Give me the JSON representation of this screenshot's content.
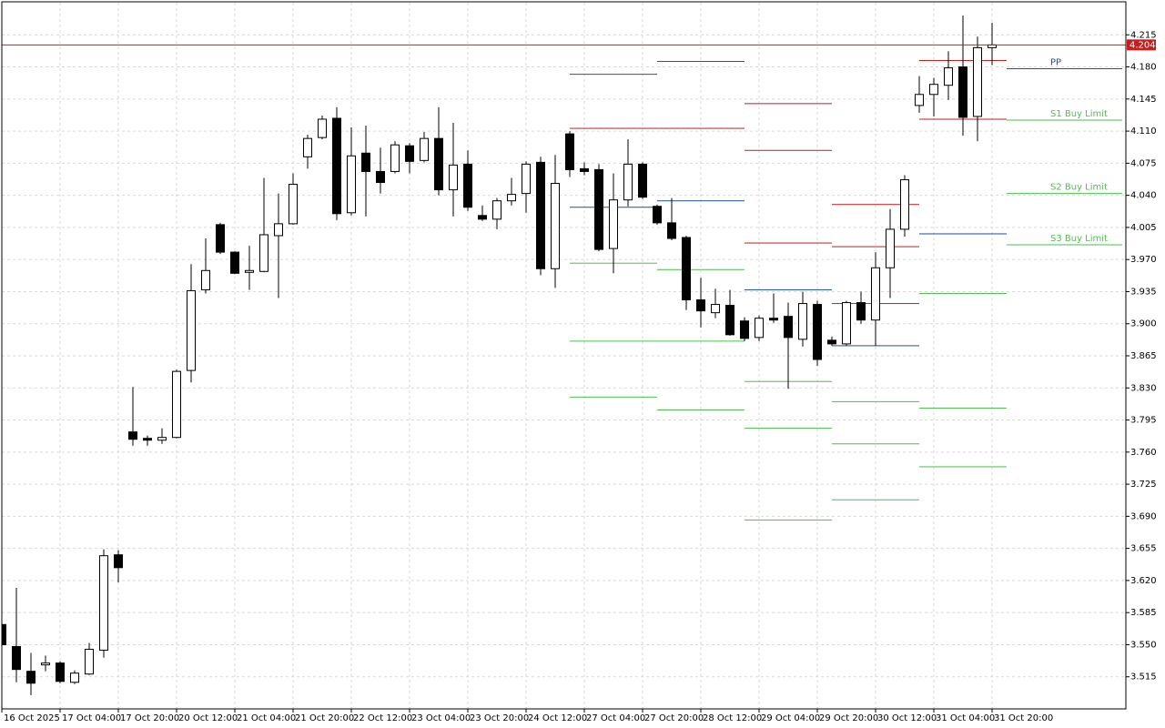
{
  "chart_data": {
    "type": "candlestick",
    "categories": [
      "16 Oct 2025",
      null,
      null,
      null,
      "17 Oct 04:00",
      null,
      null,
      null,
      "17 Oct 20:00",
      null,
      null,
      null,
      "20 Oct 12:00",
      null,
      null,
      null,
      "21 Oct 04:00",
      null,
      null,
      null,
      "21 Oct 20:00",
      null,
      null,
      null,
      "22 Oct 12:00",
      null,
      null,
      null,
      "23 Oct 04:00",
      null,
      null,
      null,
      "23 Oct 20:00",
      null,
      null,
      null,
      "24 Oct 12:00",
      null,
      null,
      null,
      "27 Oct 04:00",
      null,
      null,
      null,
      "27 Oct 20:00",
      null,
      null,
      null,
      "28 Oct 12:00",
      null,
      null,
      null,
      "29 Oct 04:00",
      null,
      null,
      null,
      "29 Oct 20:00",
      null,
      null,
      null,
      "30 Oct 12:00",
      null,
      null,
      null,
      "31 Oct 04:00",
      null,
      null,
      null,
      "31 Oct 20:00"
    ],
    "open": [
      3.572,
      3.548,
      3.521,
      3.528,
      3.53,
      3.509,
      3.518,
      3.544,
      3.648,
      3.782,
      3.775,
      3.773,
      3.776,
      3.849,
      3.937,
      4.008,
      3.978,
      3.956,
      3.957,
      3.996,
      4.009,
      4.082,
      4.103,
      4.124,
      4.021,
      4.086,
      4.066,
      4.066,
      4.094,
      4.078,
      4.102,
      4.046,
      4.074,
      4.018,
      4.014,
      4.034,
      4.042,
      4.076,
      3.96,
      4.107,
      4.069,
      4.068,
      3.982,
      4.035,
      4.074,
      4.028,
      4.01,
      3.994,
      3.926,
      3.912,
      3.92,
      3.903,
      3.885,
      3.906,
      3.908,
      3.883,
      3.921,
      3.882,
      3.878,
      3.923,
      3.904,
      3.961,
      4.003,
      4.138,
      4.15,
      4.16,
      4.18,
      4.126,
      4.201
    ],
    "high": [
      3.574,
      3.612,
      3.541,
      3.538,
      3.532,
      3.522,
      3.552,
      3.654,
      3.653,
      3.831,
      3.778,
      3.786,
      3.85,
      3.965,
      3.993,
      4.01,
      3.979,
      3.985,
      4.059,
      4.042,
      4.064,
      4.106,
      4.127,
      4.136,
      4.114,
      4.116,
      4.092,
      4.099,
      4.097,
      4.109,
      4.136,
      4.119,
      4.089,
      4.029,
      4.037,
      4.059,
      4.077,
      4.082,
      4.084,
      4.11,
      4.076,
      4.074,
      4.064,
      4.101,
      4.076,
      4.03,
      4.037,
      3.996,
      3.95,
      3.938,
      3.937,
      3.907,
      3.909,
      3.933,
      3.923,
      3.935,
      3.925,
      3.886,
      3.925,
      3.935,
      3.978,
      4.025,
      4.062,
      4.17,
      4.168,
      4.197,
      4.236,
      4.213,
      4.228
    ],
    "low": [
      3.548,
      3.509,
      3.495,
      3.521,
      3.508,
      3.507,
      3.517,
      3.536,
      3.618,
      3.767,
      3.767,
      3.769,
      3.775,
      3.836,
      3.933,
      3.976,
      3.954,
      3.937,
      3.956,
      3.928,
      4.008,
      4.069,
      4.101,
      4.013,
      4.018,
      4.017,
      4.042,
      4.064,
      4.064,
      4.076,
      4.04,
      4.017,
      4.023,
      4.012,
      4.003,
      4.029,
      4.021,
      3.953,
      3.939,
      4.06,
      4.062,
      3.979,
      3.955,
      4.028,
      4.036,
      4.008,
      3.991,
      3.915,
      3.896,
      3.906,
      3.887,
      3.881,
      3.881,
      3.901,
      3.829,
      3.875,
      3.854,
      3.876,
      3.876,
      3.9,
      3.876,
      3.928,
      3.995,
      4.13,
      4.126,
      4.144,
      4.105,
      4.099,
      4.182
    ],
    "close": [
      3.55,
      3.523,
      3.508,
      3.53,
      3.51,
      3.519,
      3.545,
      3.647,
      3.634,
      3.774,
      3.773,
      3.776,
      3.848,
      3.936,
      3.958,
      3.978,
      3.955,
      3.958,
      3.997,
      4.009,
      4.052,
      4.102,
      4.123,
      4.02,
      4.083,
      4.066,
      4.054,
      4.095,
      4.077,
      4.102,
      4.046,
      4.073,
      4.027,
      4.014,
      4.034,
      4.041,
      4.074,
      3.96,
      4.053,
      4.068,
      4.066,
      3.981,
      4.035,
      4.074,
      4.038,
      4.01,
      3.993,
      3.926,
      3.914,
      3.921,
      3.888,
      3.884,
      3.906,
      3.904,
      3.885,
      3.922,
      3.861,
      3.878,
      3.923,
      3.904,
      3.961,
      4.003,
      4.057,
      4.15,
      4.161,
      4.179,
      4.125,
      4.201,
      4.204
    ],
    "series": [
      {
        "color": "#c41e1e",
        "values": [
          null,
          null,
          null,
          null,
          null,
          null,
          null,
          null,
          null,
          null,
          null,
          null,
          null,
          null,
          null,
          null,
          null,
          null,
          null,
          null,
          null,
          null,
          null,
          null,
          null,
          null,
          null,
          null,
          null,
          null,
          null,
          null,
          null,
          null,
          null,
          null,
          null,
          null,
          null,
          null,
          null,
          null,
          null,
          null,
          null,
          null,
          null,
          null,
          null,
          null,
          null,
          4.14,
          4.14,
          4.14,
          4.14,
          4.14,
          4.14,
          4.03,
          4.03,
          4.03,
          4.03,
          4.03,
          4.03,
          null,
          null,
          null,
          null,
          null,
          null
        ]
      },
      {
        "color": "#c41e1e",
        "values": [
          null,
          null,
          null,
          null,
          null,
          null,
          null,
          null,
          null,
          null,
          null,
          null,
          null,
          null,
          null,
          null,
          null,
          null,
          null,
          null,
          null,
          null,
          null,
          null,
          null,
          null,
          null,
          null,
          null,
          null,
          null,
          null,
          null,
          null,
          null,
          null,
          null,
          null,
          null,
          4.172,
          4.172,
          4.172,
          4.172,
          4.172,
          4.172,
          4.186,
          4.186,
          4.186,
          4.186,
          4.186,
          4.186,
          4.089,
          4.089,
          4.089,
          4.089,
          4.089,
          4.089,
          3.984,
          3.984,
          3.984,
          3.984,
          3.984,
          3.984,
          4.187,
          4.187,
          4.187,
          4.187,
          4.187,
          4.187
        ]
      },
      {
        "color": "#c41e1e",
        "values": [
          null,
          null,
          null,
          null,
          null,
          null,
          null,
          null,
          null,
          null,
          null,
          null,
          null,
          null,
          null,
          null,
          null,
          null,
          null,
          null,
          null,
          null,
          null,
          null,
          null,
          null,
          null,
          null,
          null,
          null,
          null,
          null,
          null,
          null,
          null,
          null,
          null,
          null,
          null,
          4.113,
          4.113,
          4.113,
          4.113,
          4.113,
          4.113,
          4.113,
          4.113,
          4.113,
          4.113,
          4.113,
          4.113,
          3.988,
          3.988,
          3.988,
          3.988,
          3.988,
          3.988,
          3.922,
          3.922,
          3.922,
          3.922,
          3.922,
          3.922,
          4.123,
          4.123,
          4.123,
          4.123,
          4.123,
          4.123
        ]
      },
      {
        "color": "#1f4fa0",
        "values": [
          null,
          null,
          null,
          null,
          null,
          null,
          null,
          null,
          null,
          null,
          null,
          null,
          null,
          null,
          null,
          null,
          null,
          null,
          null,
          null,
          null,
          null,
          null,
          null,
          null,
          null,
          null,
          null,
          null,
          null,
          null,
          null,
          null,
          null,
          null,
          null,
          null,
          null,
          null,
          4.027,
          4.027,
          4.027,
          4.027,
          4.027,
          4.027,
          4.034,
          4.034,
          4.034,
          4.034,
          4.034,
          4.034,
          3.937,
          3.937,
          3.937,
          3.937,
          3.937,
          3.937,
          3.876,
          3.876,
          3.876,
          3.876,
          3.876,
          3.876,
          3.998,
          3.998,
          3.998,
          3.998,
          3.998,
          3.998
        ]
      },
      {
        "color": "#4cbf4c",
        "values": [
          null,
          null,
          null,
          null,
          null,
          null,
          null,
          null,
          null,
          null,
          null,
          null,
          null,
          null,
          null,
          null,
          null,
          null,
          null,
          null,
          null,
          null,
          null,
          null,
          null,
          null,
          null,
          null,
          null,
          null,
          null,
          null,
          null,
          null,
          null,
          null,
          null,
          null,
          null,
          3.966,
          3.966,
          3.966,
          3.966,
          3.966,
          3.966,
          3.959,
          3.959,
          3.959,
          3.959,
          3.959,
          3.959,
          3.837,
          3.837,
          3.837,
          3.837,
          3.837,
          3.837,
          3.815,
          3.815,
          3.815,
          3.815,
          3.815,
          3.815,
          3.933,
          3.933,
          3.933,
          3.933,
          3.933,
          3.933
        ]
      },
      {
        "color": "#4cbf4c",
        "values": [
          null,
          null,
          null,
          null,
          null,
          null,
          null,
          null,
          null,
          null,
          null,
          null,
          null,
          null,
          null,
          null,
          null,
          null,
          null,
          null,
          null,
          null,
          null,
          null,
          null,
          null,
          null,
          null,
          null,
          null,
          null,
          null,
          null,
          null,
          null,
          null,
          null,
          null,
          null,
          3.881,
          3.881,
          3.881,
          3.881,
          3.881,
          3.881,
          3.881,
          3.881,
          3.881,
          3.881,
          3.881,
          3.881,
          3.786,
          3.786,
          3.786,
          3.786,
          3.786,
          3.786,
          3.769,
          3.769,
          3.769,
          3.769,
          3.769,
          3.769,
          3.808,
          3.808,
          3.808,
          3.808,
          3.808,
          3.808
        ]
      },
      {
        "color": "#4cbf4c",
        "values": [
          null,
          null,
          null,
          null,
          null,
          null,
          null,
          null,
          null,
          null,
          null,
          null,
          null,
          null,
          null,
          null,
          null,
          null,
          null,
          null,
          null,
          null,
          null,
          null,
          null,
          null,
          null,
          null,
          null,
          null,
          null,
          null,
          null,
          null,
          null,
          null,
          null,
          null,
          null,
          3.82,
          3.82,
          3.82,
          3.82,
          3.82,
          3.82,
          3.806,
          3.806,
          3.806,
          3.806,
          3.806,
          3.806,
          3.686,
          3.686,
          3.686,
          3.686,
          3.686,
          3.686,
          3.708,
          3.708,
          3.708,
          3.708,
          3.708,
          3.708,
          3.744,
          3.744,
          3.744,
          3.744,
          3.744,
          3.744
        ]
      }
    ],
    "levels": [
      {
        "label": "PP",
        "value": 4.178,
        "color": "#1f4fa0"
      },
      {
        "label": "S1 Buy Limit",
        "value": 4.122,
        "color": "#4cbf4c"
      },
      {
        "label": "S2 Buy Limit",
        "value": 4.042,
        "color": "#4cbf4c"
      },
      {
        "label": "S3 Buy Limit",
        "value": 3.986,
        "color": "#4cbf4c"
      }
    ],
    "current_price": 4.204,
    "current_price_color": "#c41e1e",
    "up_color": "#ffffff",
    "down_color": "#000000",
    "ylim": [
      3.48,
      4.25
    ],
    "yticks": [
      3.515,
      {
        "value": 3.55,
        "label": "3.550"
      },
      3.585,
      {
        "value": 3.62,
        "label": "3.620"
      },
      3.655,
      {
        "value": 3.69,
        "label": "3.690"
      },
      3.725,
      {
        "value": 3.76,
        "label": "3.760"
      },
      3.795,
      {
        "value": 3.83,
        "label": "3.830"
      },
      3.865,
      {
        "value": 3.9,
        "label": "3.900"
      },
      3.935,
      {
        "value": 3.97,
        "label": "3.970"
      },
      4.005,
      {
        "value": 4.04,
        "label": "4.040"
      },
      4.075,
      {
        "value": 4.11,
        "label": "4.110"
      },
      4.145,
      {
        "value": 4.18,
        "label": "4.180"
      },
      4.215
    ],
    "grid": true
  }
}
